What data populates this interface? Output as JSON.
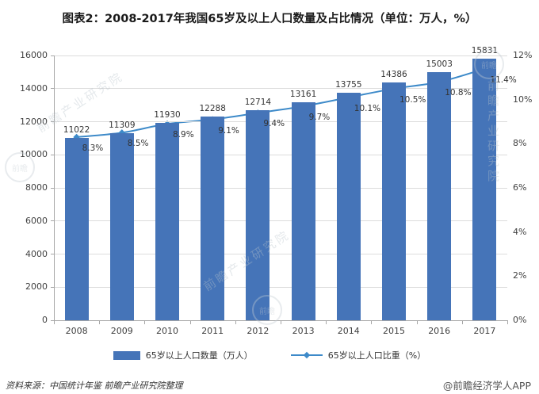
{
  "title": "图表2：2008-2017年我国65岁及以上人口数量及占比情况（单位：万人，%）",
  "chart_data": {
    "type": "bar+line",
    "categories": [
      "2008",
      "2009",
      "2010",
      "2011",
      "2012",
      "2013",
      "2014",
      "2015",
      "2016",
      "2017"
    ],
    "series": [
      {
        "name": "65岁以上人口数量（万人）",
        "type": "bar",
        "axis": "left",
        "values": [
          11022,
          11309,
          11930,
          12288,
          12714,
          13161,
          13755,
          14386,
          15003,
          15831
        ]
      },
      {
        "name": "65岁以上人口比重（%）",
        "type": "line",
        "axis": "right",
        "values": [
          8.3,
          8.5,
          8.9,
          9.1,
          9.4,
          9.7,
          10.1,
          10.5,
          10.8,
          11.4
        ]
      }
    ],
    "left_axis": {
      "min": 0,
      "max": 16000,
      "step": 2000
    },
    "right_axis": {
      "min": 0,
      "max": 12,
      "step": 2,
      "suffix": "%"
    },
    "grid": true,
    "legend_position": "bottom",
    "colors": {
      "bar": "#4574b8",
      "line": "#3d8ac9",
      "grid": "#dcdcdc",
      "axis": "#a6a6a6",
      "label": "#333333"
    }
  },
  "footer": {
    "source": "资料来源：中国统计年鉴  前瞻产业研究院整理",
    "credit": "@前瞻经济学人APP"
  },
  "watermark": "前瞻产业研究院"
}
